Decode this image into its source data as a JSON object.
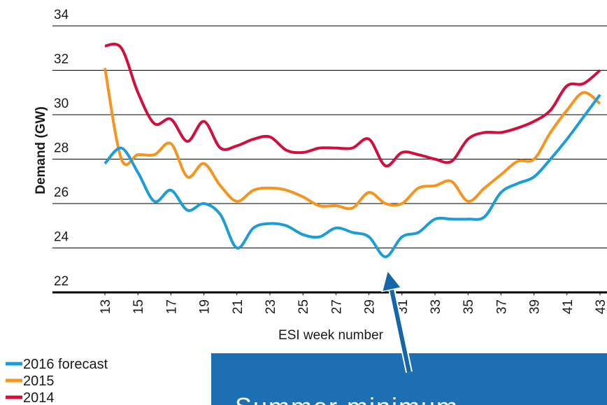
{
  "chart_data": {
    "type": "line",
    "xlabel": "ESI week number",
    "ylabel": "Demand (GW)",
    "x": [
      13,
      14,
      15,
      16,
      17,
      18,
      19,
      20,
      21,
      22,
      23,
      24,
      25,
      26,
      27,
      28,
      29,
      30,
      31,
      32,
      33,
      34,
      35,
      36,
      37,
      38,
      39,
      40,
      41,
      42,
      43
    ],
    "xlim": [
      13,
      43
    ],
    "xticks": [
      13,
      15,
      17,
      19,
      21,
      23,
      25,
      27,
      29,
      31,
      33,
      35,
      37,
      39,
      41,
      43
    ],
    "ylim": [
      22,
      34
    ],
    "yticks": [
      22,
      24,
      26,
      28,
      30,
      32,
      34
    ],
    "grid": true,
    "legend": "bottom left",
    "series": [
      {
        "name": "2016 forecast",
        "color": "#1b9dd9",
        "values": [
          27.8,
          28.5,
          27.4,
          26.1,
          26.6,
          25.7,
          26.0,
          25.5,
          24.0,
          24.9,
          25.1,
          25.0,
          24.6,
          24.5,
          24.9,
          24.7,
          24.5,
          23.6,
          24.5,
          24.7,
          25.3,
          25.3,
          25.3,
          25.4,
          26.5,
          26.9,
          27.2,
          28.0,
          28.9,
          29.9,
          30.9
        ]
      },
      {
        "name": "2015",
        "color": "#f7941d",
        "values": [
          32.1,
          28.0,
          28.2,
          28.2,
          28.7,
          27.2,
          27.8,
          26.8,
          26.1,
          26.6,
          26.7,
          26.6,
          26.3,
          25.9,
          25.9,
          25.8,
          26.5,
          26.0,
          26.0,
          26.7,
          26.8,
          27.0,
          26.1,
          26.7,
          27.3,
          27.9,
          28.0,
          29.2,
          30.2,
          31.0,
          30.5
        ]
      },
      {
        "name": "2014",
        "color": "#d20f3c",
        "values": [
          33.1,
          33.0,
          31.0,
          29.6,
          29.8,
          28.8,
          29.7,
          28.5,
          28.6,
          28.9,
          29.0,
          28.4,
          28.3,
          28.5,
          28.5,
          28.5,
          28.9,
          27.7,
          28.3,
          28.2,
          28.0,
          27.9,
          28.9,
          29.2,
          29.2,
          29.4,
          29.7,
          30.2,
          31.3,
          31.4,
          32.0
        ]
      }
    ],
    "annotation": "Summer minimum"
  }
}
